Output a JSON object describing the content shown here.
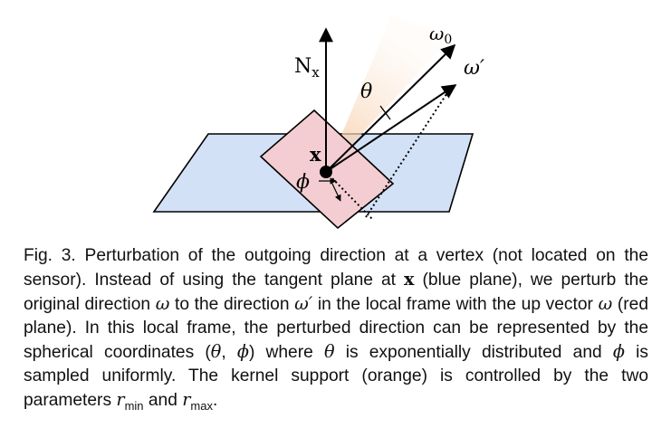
{
  "figure": {
    "normal_label": "N",
    "normal_sub": "x",
    "vertex_label": "x",
    "theta_label": "θ",
    "phi_label": "ϕ",
    "omega0_label": "ω",
    "omega0_sub": "0",
    "omega_prime_label": "ω′",
    "colors": {
      "blue_plane": "#d3e1f6",
      "red_plane": "#f3cdd2",
      "kernel_orange": "#fbe1cb",
      "stroke": "#000000"
    }
  },
  "caption": {
    "fig_label": "Fig. 3.",
    "t1": "Perturbation of the outgoing direction at a vertex (not located on the sensor). Instead of using the tangent plane at ",
    "x_symbol": "x",
    "t2": " (blue plane), we perturb the original direction ",
    "omega": "ω",
    "t3": " to the direction ",
    "omega_prime": "ω′",
    "t4": " in the local frame with the up vector ",
    "omega2": "ω",
    "t5": " (red plane). In this local frame, the perturbed direction can be represented by the spherical coordinates (",
    "theta": "θ",
    "comma": ", ",
    "phi": "ϕ",
    "t6": ") where ",
    "theta2": "θ",
    "t7": " is exponentially distributed and ",
    "phi2": "ϕ",
    "t8": " is sampled uniformly. The kernel support (orange) is controlled by the two parameters ",
    "r": "r",
    "rmin_sub": "min",
    "and": " and ",
    "r2": "r",
    "rmax_sub": "max",
    "end": "."
  }
}
